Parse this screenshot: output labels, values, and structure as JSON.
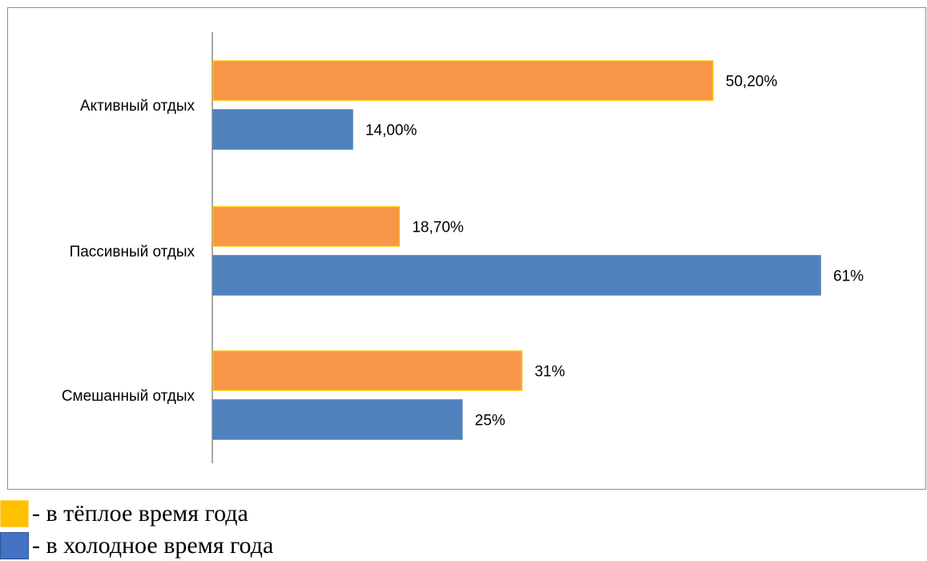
{
  "chart_data": {
    "type": "bar",
    "orientation": "horizontal",
    "categories": [
      "Активный отдых",
      "Пассивный отдых",
      "Смешанный отдых"
    ],
    "series": [
      {
        "key": "warm",
        "values": [
          50.2,
          18.7,
          31
        ],
        "data_labels": [
          "50,20%",
          "18,70%",
          "31%"
        ],
        "color": "#F79646",
        "border_color": "#FFC000"
      },
      {
        "key": "cold",
        "values": [
          14,
          61,
          25
        ],
        "data_labels": [
          "14,00%",
          "61%",
          "25%"
        ],
        "color": "#4F81BD",
        "border_color": "#4F81BD"
      }
    ],
    "xlim": [
      0,
      61
    ],
    "grid": false,
    "legend_placement": "below"
  },
  "legend": {
    "items": [
      {
        "key": "warm",
        "label": "- в тёплое время года",
        "swatch_color": "#FFC000"
      },
      {
        "key": "cold",
        "label": "- в холодное время года",
        "swatch_color": "#4472C4"
      }
    ]
  }
}
